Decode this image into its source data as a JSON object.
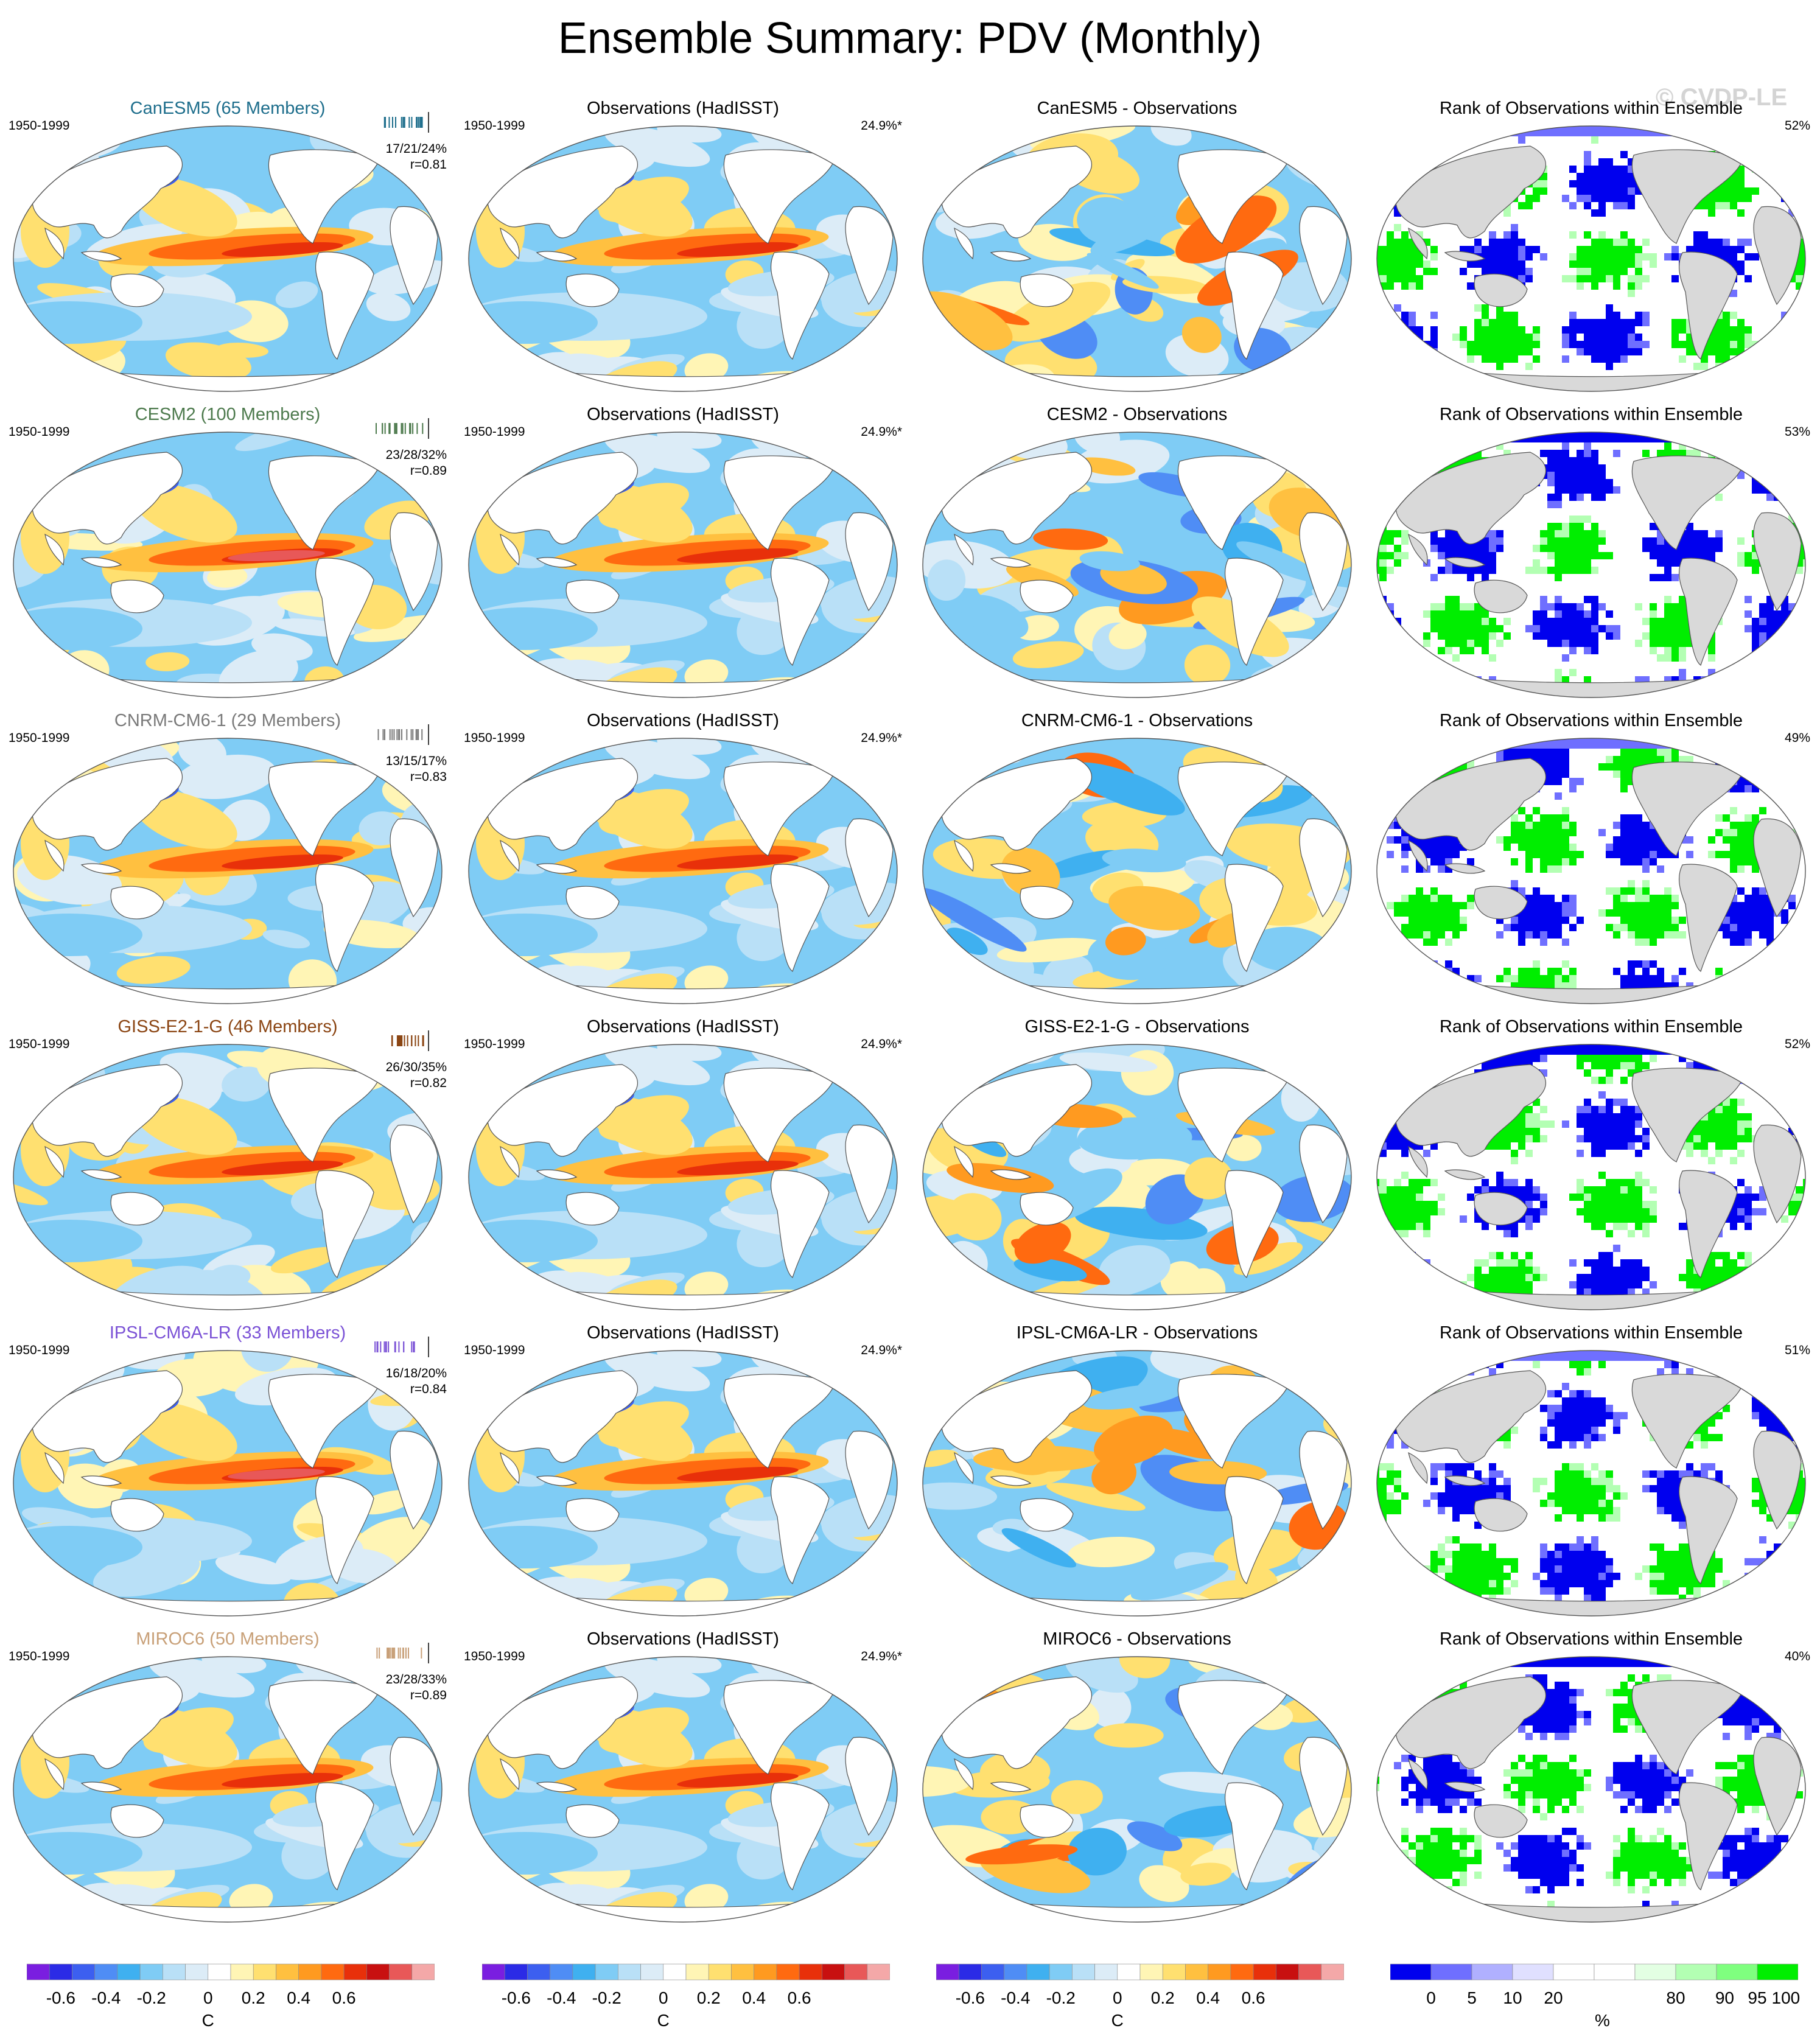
{
  "title": "Ensemble Summary: PDV (Monthly)",
  "watermark": "© CVDP-LE",
  "period": "1950-1999",
  "obs_title": "Observations (HadISST)",
  "obs_pct": "24.9%*",
  "rank_title": "Rank of Observations within Ensemble",
  "colors": {
    "land": "#ffffff",
    "land_rank": "#d9d9d9",
    "coast": "#555555",
    "diverging": [
      "#7a1ee0",
      "#2b2be6",
      "#3c5ff0",
      "#4f8df5",
      "#3fb0f0",
      "#7fccf5",
      "#b9e0f7",
      "#dcecf7",
      "#ffffff",
      "#fff5b5",
      "#ffe070",
      "#ffc040",
      "#ff9a20",
      "#ff6a10",
      "#e8300a",
      "#c81010",
      "#e85858",
      "#f4a8a8"
    ],
    "rank": [
      "#0000ee",
      "#6f6fff",
      "#b0b0ff",
      "#e0e0ff",
      "#ffffff",
      "#e3ffe3",
      "#b3ffb3",
      "#7fff7f",
      "#00ee00"
    ]
  },
  "rows": [
    {
      "model": "CanESM5 (65 Members)",
      "model_color": "#1e6e8c",
      "stats": "17/21/24%",
      "r": "r=0.81",
      "diff_title": "CanESM5 - Observations",
      "rank_pct": "52%"
    },
    {
      "model": "CESM2 (100 Members)",
      "model_color": "#4d7a4d",
      "stats": "23/28/32%",
      "r": "r=0.89",
      "diff_title": "CESM2 - Observations",
      "rank_pct": "53%"
    },
    {
      "model": "CNRM-CM6-1 (29 Members)",
      "model_color": "#7a7a7a",
      "stats": "13/15/17%",
      "r": "r=0.83",
      "diff_title": "CNRM-CM6-1 - Observations",
      "rank_pct": "49%"
    },
    {
      "model": "GISS-E2-1-G (46 Members)",
      "model_color": "#8b4513",
      "stats": "26/30/35%",
      "r": "r=0.82",
      "diff_title": "GISS-E2-1-G - Observations",
      "rank_pct": "52%"
    },
    {
      "model": "IPSL-CM6A-LR (33 Members)",
      "model_color": "#7b52d6",
      "stats": "16/18/20%",
      "r": "r=0.84",
      "diff_title": "IPSL-CM6A-LR - Observations",
      "rank_pct": "51%"
    },
    {
      "model": "MIROC6 (50 Members)",
      "model_color": "#c8a078",
      "stats": "23/28/33%",
      "r": "r=0.89",
      "diff_title": "MIROC6 - Observations",
      "rank_pct": "40%"
    }
  ],
  "colorbars": [
    {
      "labels": [
        "-0.6",
        "-0.4",
        "-0.2",
        "0",
        "0.2",
        "0.4",
        "0.6"
      ],
      "unit": "C"
    },
    {
      "labels": [
        "-0.6",
        "-0.4",
        "-0.2",
        "0",
        "0.2",
        "0.4",
        "0.6"
      ],
      "unit": "C"
    },
    {
      "labels": [
        "-0.6",
        "-0.4",
        "-0.2",
        "0",
        "0.2",
        "0.4",
        "0.6"
      ],
      "unit": "C"
    },
    {
      "labels": [
        "0",
        "5",
        "10",
        "20",
        "80",
        "90",
        "95",
        "100"
      ],
      "unit": "%"
    }
  ]
}
